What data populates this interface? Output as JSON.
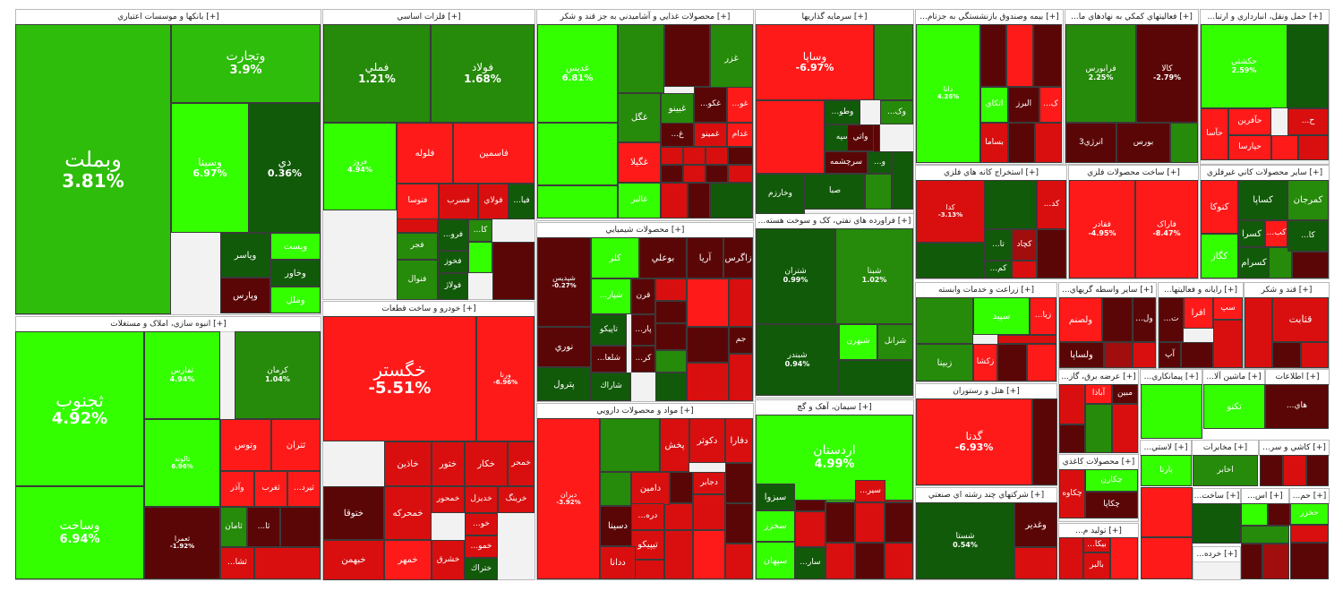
{
  "colors": {
    "strong_green": "#33ff00",
    "green": "#2ebd0a",
    "mid_green": "#268a0a",
    "dark_green": "#115a09",
    "strong_red": "#ff1a1a",
    "red": "#d90f0f",
    "mid_red": "#a20e0e",
    "dark_red": "#5b0606"
  },
  "sectors": [
    {
      "name": "بانکها و موسسات اعتباري [+]"
    },
    {
      "name": "فلزات اساسي [+]"
    },
    {
      "name": "محصولات غذايي و آشاميدني به جز قند و شکر [+]"
    },
    {
      "name": "سرمايه گذاريها [+]"
    },
    {
      "name": "...بيمه وصندوق بازنشستگي به جزتام [+]"
    },
    {
      "name": "...فعاليتهاي کمکي به نهادهاي ما [+]"
    },
    {
      "name": "...حمل ونقل، انبارداري و ارتبا [+]"
    },
    {
      "name": "انبوه سازي، املاک و مستغلات [+]"
    },
    {
      "name": "خودرو و ساخت قطعات [+]"
    },
    {
      "name": "محصولات شيميايي [+]"
    },
    {
      "name": "...فراورده هاي نفتي، کک و سوخت هسته [+]"
    },
    {
      "name": "استخراج کانه هاي فلزي [+]"
    },
    {
      "name": "ساخت محصولات فلزي [+]"
    },
    {
      "name": "ساير محصولات کاني غيرفلزي [+]"
    },
    {
      "name": "زراعت و خدمات وابسته [+]"
    },
    {
      "name": "...ساير واسطه گريهاي [+]"
    },
    {
      "name": "...رايانه و فعاليتها [+]"
    },
    {
      "name": "قند و شکر [+]"
    },
    {
      "name": "مواد و محصولات دارويي [+]"
    },
    {
      "name": "سيمان، آهک و گچ [+]"
    },
    {
      "name": "هتل و رستوران [+]"
    },
    {
      "name": "...عرضه برق، گاز [+]"
    },
    {
      "name": "...پيمانکاري [+]"
    },
    {
      "name": "...ماشين آلا [+]"
    },
    {
      "name": "اطلاعات [+]"
    },
    {
      "name": "شرکتهاي چند رشته اي صنعتي [+]"
    },
    {
      "name": "محصولات کاغذي [+]"
    },
    {
      "name": "...لاستي [+]"
    },
    {
      "name": "مخابرات [+]"
    },
    {
      "name": "...کاشي و سر [+]"
    },
    {
      "name": "...توليد م [+]"
    },
    {
      "name": "...ماشين آلات و د [+]"
    },
    {
      "name": "...ساخت [+]"
    },
    {
      "name": "...اس [+]"
    },
    {
      "name": "...حم [+]"
    },
    {
      "name": "...خرده [+]"
    }
  ],
  "tiles": [
    {
      "symbol": "وبملت",
      "change": "3.81%"
    },
    {
      "symbol": "وتجارت",
      "change": "3.9%"
    },
    {
      "symbol": "وسينا",
      "change": "6.97%"
    },
    {
      "symbol": "دي",
      "change": "0.36%"
    },
    {
      "symbol": "وپست",
      "change": ""
    },
    {
      "symbol": "وياسر",
      "change": ""
    },
    {
      "symbol": "وخاور",
      "change": ""
    },
    {
      "symbol": "وپارس",
      "change": ""
    },
    {
      "symbol": "وملل",
      "change": ""
    },
    {
      "symbol": "فملي",
      "change": "1.21%"
    },
    {
      "symbol": "فولاد",
      "change": "1.68%"
    },
    {
      "symbol": "فروژ",
      "change": "4.94%"
    },
    {
      "symbol": "فلوله",
      "change": ""
    },
    {
      "symbol": "فاسمين",
      "change": ""
    },
    {
      "symbol": "فتوسا",
      "change": ""
    },
    {
      "symbol": "فسرب",
      "change": ""
    },
    {
      "symbol": "فولاي",
      "change": ""
    },
    {
      "symbol": "...فيا",
      "change": ""
    },
    {
      "symbol": "...فرو",
      "change": ""
    },
    {
      "symbol": "...کا",
      "change": ""
    },
    {
      "symbol": "فجر",
      "change": ""
    },
    {
      "symbol": "فخوز",
      "change": ""
    },
    {
      "symbol": "فنوال",
      "change": ""
    },
    {
      "symbol": "فولاژ",
      "change": ""
    },
    {
      "symbol": "غديس",
      "change": "6.81%"
    },
    {
      "symbol": "غزر",
      "change": ""
    },
    {
      "symbol": "غگل",
      "change": ""
    },
    {
      "symbol": "غبينو",
      "change": ""
    },
    {
      "symbol": "...غکو",
      "change": ""
    },
    {
      "symbol": "...غو",
      "change": ""
    },
    {
      "symbol": "غدام",
      "change": ""
    },
    {
      "symbol": "غمينو",
      "change": ""
    },
    {
      "symbol": "...غ",
      "change": ""
    },
    {
      "symbol": "غگيلا",
      "change": ""
    },
    {
      "symbol": "غالبر",
      "change": ""
    },
    {
      "symbol": "وساپا",
      "change": "-6.97%"
    },
    {
      "symbol": "...وطو",
      "change": ""
    },
    {
      "symbol": "...وک",
      "change": ""
    },
    {
      "symbol": "وسپه",
      "change": ""
    },
    {
      "symbol": "واتي",
      "change": ""
    },
    {
      "symbol": "سرچشمه",
      "change": ""
    },
    {
      "symbol": "...و",
      "change": ""
    },
    {
      "symbol": "صبا",
      "change": ""
    },
    {
      "symbol": "وخارزم",
      "change": ""
    },
    {
      "symbol": "دانا",
      "change": "4.26%"
    },
    {
      "symbol": "اتکاي",
      "change": ""
    },
    {
      "symbol": "البرز",
      "change": ""
    },
    {
      "symbol": "...ک",
      "change": ""
    },
    {
      "symbol": "بساما",
      "change": ""
    },
    {
      "symbol": "فرابورس",
      "change": "2.25%"
    },
    {
      "symbol": "کالا",
      "change": "-2.79%"
    },
    {
      "symbol": "انرژي3",
      "change": ""
    },
    {
      "symbol": "بورس",
      "change": ""
    },
    {
      "symbol": "حکشتي",
      "change": "2.59%"
    },
    {
      "symbol": "...ح",
      "change": ""
    },
    {
      "symbol": "حآفرين",
      "change": ""
    },
    {
      "symbol": "حآسا",
      "change": ""
    },
    {
      "symbol": "حپارسا",
      "change": ""
    },
    {
      "symbol": "ثجنوب",
      "change": "4.92%"
    },
    {
      "symbol": "ثفارس",
      "change": "4.94%"
    },
    {
      "symbol": "کرمان",
      "change": "1.04%"
    },
    {
      "symbol": "ثالوند",
      "change": "6.96%"
    },
    {
      "symbol": "وتوس",
      "change": ""
    },
    {
      "symbol": "ثتران",
      "change": ""
    },
    {
      "symbol": "وآذر",
      "change": ""
    },
    {
      "symbol": "ثغرب",
      "change": ""
    },
    {
      "symbol": "...ثيرد",
      "change": ""
    },
    {
      "symbol": "ثامان",
      "change": ""
    },
    {
      "symbol": "...ثا",
      "change": ""
    },
    {
      "symbol": "...ثشا",
      "change": ""
    },
    {
      "symbol": "وساخت",
      "change": "6.94%"
    },
    {
      "symbol": "ثعمرا",
      "change": "-1.92%"
    },
    {
      "symbol": "خگستر",
      "change": "-5.51%"
    },
    {
      "symbol": "ورنا",
      "change": "-6.96%"
    },
    {
      "symbol": "خاذين",
      "change": ""
    },
    {
      "symbol": "ختور",
      "change": ""
    },
    {
      "symbol": "خکار",
      "change": ""
    },
    {
      "symbol": "خمحر",
      "change": ""
    },
    {
      "symbol": "ختوقا",
      "change": ""
    },
    {
      "symbol": "خمحركه",
      "change": ""
    },
    {
      "symbol": "خمحور",
      "change": ""
    },
    {
      "symbol": "خديزل",
      "change": ""
    },
    {
      "symbol": "خرينگ",
      "change": ""
    },
    {
      "symbol": "...خو",
      "change": ""
    },
    {
      "symbol": "خبهمن",
      "change": ""
    },
    {
      "symbol": "خمهر",
      "change": ""
    },
    {
      "symbol": "خشرق",
      "change": ""
    },
    {
      "symbol": "...خمو",
      "change": ""
    },
    {
      "symbol": "ختراك",
      "change": ""
    },
    {
      "symbol": "شپديس",
      "change": "-0.27%"
    },
    {
      "symbol": "زاگرس",
      "change": ""
    },
    {
      "symbol": "آريا",
      "change": ""
    },
    {
      "symbol": "بوعلي",
      "change": ""
    },
    {
      "symbol": "کلر",
      "change": ""
    },
    {
      "symbol": "...شپار",
      "change": ""
    },
    {
      "symbol": "قرن",
      "change": ""
    },
    {
      "symbol": "تاپيکو",
      "change": ""
    },
    {
      "symbol": "...پار",
      "change": ""
    },
    {
      "symbol": "...شلعا",
      "change": ""
    },
    {
      "symbol": "...کر",
      "change": ""
    },
    {
      "symbol": "شاراك",
      "change": ""
    },
    {
      "symbol": "نوري",
      "change": ""
    },
    {
      "symbol": "پترول",
      "change": ""
    },
    {
      "symbol": "جم",
      "change": ""
    },
    {
      "symbol": "شتران",
      "change": "0.99%"
    },
    {
      "symbol": "شبنا",
      "change": "1.02%"
    },
    {
      "symbol": "شبندر",
      "change": "0.94%"
    },
    {
      "symbol": "شبهرن",
      "change": ""
    },
    {
      "symbol": "شرانل",
      "change": ""
    },
    {
      "symbol": "کدا",
      "change": "-3.13%"
    },
    {
      "symbol": "...کد",
      "change": ""
    },
    {
      "symbol": "...تا",
      "change": ""
    },
    {
      "symbol": "کچاد",
      "change": ""
    },
    {
      "symbol": "...کم",
      "change": ""
    },
    {
      "symbol": "فقادر",
      "change": "-4.95%"
    },
    {
      "symbol": "فاراک",
      "change": "-8.47%"
    },
    {
      "symbol": "کمرجان",
      "change": ""
    },
    {
      "symbol": "کساپا",
      "change": ""
    },
    {
      "symbol": "کنوکا",
      "change": ""
    },
    {
      "symbol": "کسرا",
      "change": ""
    },
    {
      "symbol": "...کب",
      "change": ""
    },
    {
      "symbol": "...کا",
      "change": ""
    },
    {
      "symbol": "کگاز",
      "change": ""
    },
    {
      "symbol": "کسرام",
      "change": ""
    },
    {
      "symbol": "سپيد",
      "change": ""
    },
    {
      "symbol": "...زيا",
      "change": ""
    },
    {
      "symbol": "زبينا",
      "change": ""
    },
    {
      "symbol": "زکشا",
      "change": ""
    },
    {
      "symbol": "ولصنم",
      "change": ""
    },
    {
      "symbol": "...ول",
      "change": ""
    },
    {
      "symbol": "ولساپا",
      "change": ""
    },
    {
      "symbol": "...ت",
      "change": ""
    },
    {
      "symbol": "افرا",
      "change": ""
    },
    {
      "symbol": "آپ",
      "change": ""
    },
    {
      "symbol": "سپ",
      "change": ""
    },
    {
      "symbol": "قثابت",
      "change": ""
    },
    {
      "symbol": "ديران",
      "change": "-3.92%"
    },
    {
      "symbol": "دکوثر",
      "change": ""
    },
    {
      "symbol": "دفارا",
      "change": ""
    },
    {
      "symbol": "پخش",
      "change": ""
    },
    {
      "symbol": "دامين",
      "change": ""
    },
    {
      "symbol": "دجابر",
      "change": ""
    },
    {
      "symbol": "دسينا",
      "change": ""
    },
    {
      "symbol": "تيپيکو",
      "change": ""
    },
    {
      "symbol": "ددانا",
      "change": ""
    },
    {
      "symbol": "...دره",
      "change": ""
    },
    {
      "symbol": "اردستان",
      "change": "4.99%"
    },
    {
      "symbol": "سبزوا",
      "change": ""
    },
    {
      "symbol": "سخزر",
      "change": ""
    },
    {
      "symbol": "سپهان",
      "change": ""
    },
    {
      "symbol": "...سير",
      "change": ""
    },
    {
      "symbol": "...سار",
      "change": ""
    },
    {
      "symbol": "گدنا",
      "change": "-6.93%"
    },
    {
      "symbol": "شستا",
      "change": "0.54%"
    },
    {
      "symbol": "وغدير",
      "change": ""
    },
    {
      "symbol": "آباذا",
      "change": ""
    },
    {
      "symbol": "مبين",
      "change": ""
    },
    {
      "symbol": "تکنو",
      "change": ""
    },
    {
      "symbol": "...هاي",
      "change": ""
    },
    {
      "symbol": "چکارن",
      "change": ""
    },
    {
      "symbol": "چکاوه",
      "change": ""
    },
    {
      "symbol": "چکاپا",
      "change": ""
    },
    {
      "symbol": "پارتا",
      "change": ""
    },
    {
      "symbol": "اخابر",
      "change": ""
    },
    {
      "symbol": "بالبر",
      "change": ""
    },
    {
      "symbol": "...بيکا",
      "change": ""
    },
    {
      "symbol": "حخزر",
      "change": ""
    }
  ]
}
